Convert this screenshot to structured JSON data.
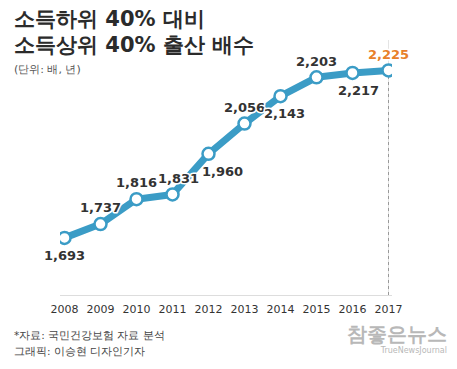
{
  "chart_data": {
    "type": "line",
    "title": "소득하위 40% 대비\n소득상위 40% 출산 배수",
    "subtitle": "(단위: 배, 년)",
    "categories": [
      "2008",
      "2009",
      "2010",
      "2011",
      "2012",
      "2013",
      "2014",
      "2015",
      "2016",
      "2017"
    ],
    "values": [
      1.693,
      1.737,
      1.816,
      1.831,
      1.96,
      2.056,
      2.143,
      2.203,
      2.217,
      2.225
    ],
    "value_labels": [
      "1,693",
      "1,737",
      "1,816",
      "1,831",
      "1,960",
      "2,056",
      "2,143",
      "2,203",
      "2,217",
      "2,225"
    ],
    "color": "#3b9cc6",
    "colors": [
      "#333333",
      "#333333",
      "#333333",
      "#333333",
      "#333333",
      "#333333",
      "#333333",
      "#333333",
      "#333333",
      "#e8802a"
    ],
    "marker": "circle",
    "data_labels": true,
    "tick_labels": "x",
    "ylim": [
      1.51,
      2.32
    ],
    "yticks": [],
    "notes": [
      "*자료: 국민건강보험 자료 분석",
      "그래픽: 이승현 디자인기자"
    ],
    "watermark": [
      "참좋은뉴스",
      "TrueNewsJournal"
    ]
  }
}
